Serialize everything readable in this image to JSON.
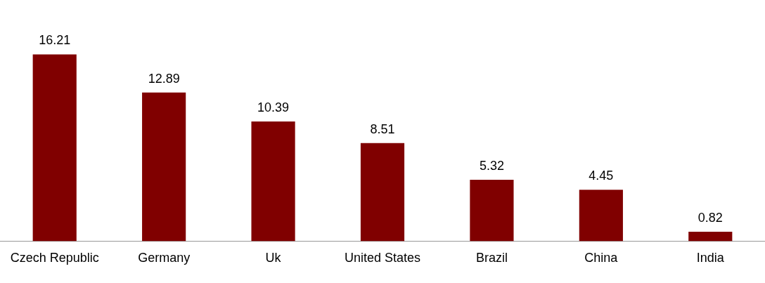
{
  "chart_data": {
    "type": "bar",
    "categories": [
      "Czech Republic",
      "Germany",
      "Uk",
      "United States",
      "Brazil",
      "China",
      "India"
    ],
    "values": [
      16.21,
      12.89,
      10.39,
      8.51,
      5.32,
      4.45,
      0.82
    ],
    "color": "#800000",
    "data_labels": true,
    "grid": false,
    "legend": false
  }
}
